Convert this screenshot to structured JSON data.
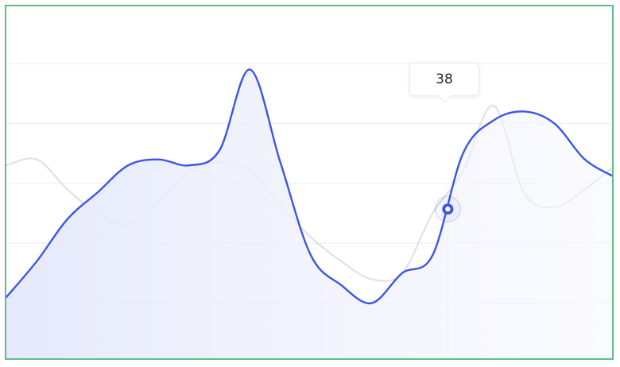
{
  "chart_data": {
    "type": "area",
    "title": "",
    "xlabel": "",
    "ylabel": "",
    "x": [
      0,
      1,
      2,
      3,
      4,
      5,
      6,
      7,
      8,
      9,
      10,
      11,
      12,
      13,
      14,
      15,
      16,
      17,
      18,
      19,
      20
    ],
    "ylim": [
      0,
      100
    ],
    "grid": true,
    "series": [
      {
        "values": [
          22,
          34,
          48,
          57,
          66,
          68,
          66,
          71,
          98,
          67,
          36,
          26,
          20,
          30,
          36,
          70,
          81,
          84,
          80,
          68,
          62
        ],
        "color": "#3c55e6",
        "fill": true
      },
      {
        "values": [
          66,
          68,
          58,
          50,
          46,
          54,
          64,
          67,
          64,
          53,
          42,
          34,
          28,
          30,
          50,
          64,
          86,
          57,
          52,
          58,
          66
        ],
        "color": "#dedee4",
        "fill": false
      }
    ],
    "highlight": {
      "series": 0,
      "x": 14.5,
      "value": 38
    }
  }
}
